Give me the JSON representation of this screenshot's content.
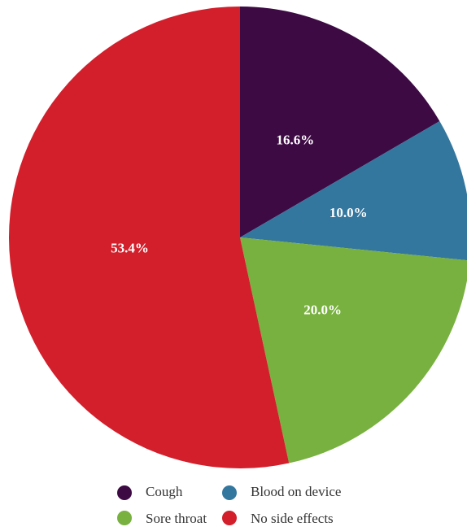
{
  "chart_data": {
    "type": "pie",
    "categories": [
      "Cough",
      "Blood on device",
      "Sore throat",
      "No side effects"
    ],
    "values": [
      16.6,
      10.0,
      20.0,
      53.4
    ],
    "labels": [
      "16.6%",
      "10.0%",
      "20.0%",
      "53.4%"
    ],
    "colors": [
      "#3d0a44",
      "#34779e",
      "#78b13f",
      "#d21f2b"
    ],
    "unit": "%",
    "start_angle_deg": 0,
    "direction": "clockwise",
    "legend": {
      "placement": "bottom",
      "items": [
        {
          "label": "Cough",
          "color": "#3d0a44"
        },
        {
          "label": "Blood on device",
          "color": "#34779e"
        },
        {
          "label": "Sore throat",
          "color": "#78b13f"
        },
        {
          "label": "No side effects",
          "color": "#d21f2b"
        }
      ]
    }
  }
}
